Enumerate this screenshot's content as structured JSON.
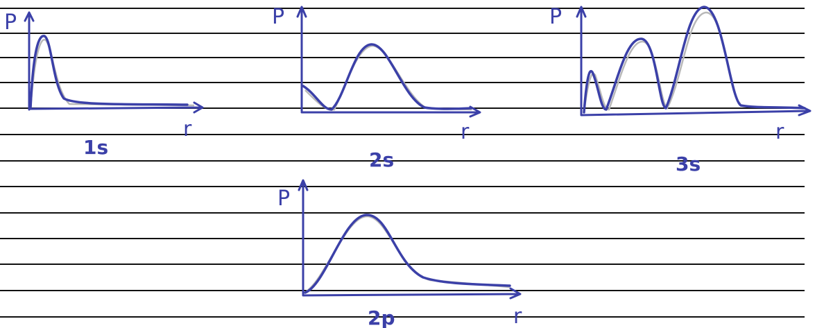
{
  "plots": [
    {
      "y_axis": "P",
      "x_axis": "r",
      "label": "1s"
    },
    {
      "y_axis": "P",
      "x_axis": "r",
      "label": "2s"
    },
    {
      "y_axis": "P",
      "x_axis": "r",
      "label": "3s"
    },
    {
      "y_axis": "P",
      "x_axis": "r",
      "label": "2p"
    }
  ]
}
